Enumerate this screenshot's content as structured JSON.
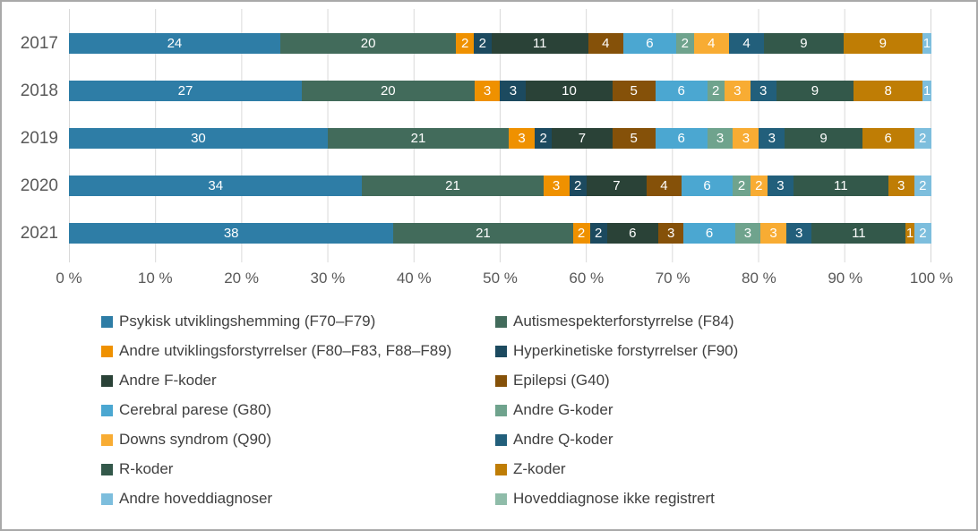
{
  "frame": {
    "background": "#FFFFFF",
    "border_color": "#A9A9A9",
    "grid_color": "#D9D9D9",
    "axis_text_color": "#595959",
    "legend_text_color": "#404040",
    "bar_label_color": "#FFFFFF"
  },
  "chart_data": {
    "type": "bar",
    "variant": "horizontal-stacked-100",
    "title": "",
    "xlabel": "",
    "ylabel": "",
    "x_range": [
      0,
      100
    ],
    "x_ticks": [
      "0 %",
      "10 %",
      "20 %",
      "30 %",
      "40 %",
      "50 %",
      "60 %",
      "70 %",
      "80 %",
      "90 %",
      "100 %"
    ],
    "grid": true,
    "legend_position": "bottom",
    "legend_columns": 2,
    "value_labels": "inside-segments-white",
    "categories": [
      "2017",
      "2018",
      "2019",
      "2020",
      "2021"
    ],
    "series": [
      {
        "name": "Psykisk utviklingshemming (F70–F79)",
        "color": "#2E7DA6",
        "values": [
          24,
          27,
          30,
          34,
          38
        ]
      },
      {
        "name": "Autismespekterforstyrrelse (F84)",
        "color": "#426B5B",
        "values": [
          20,
          20,
          21,
          21,
          21
        ]
      },
      {
        "name": "Andre utviklingsforstyrrelser (F80–F83, F88–F89)",
        "color": "#EF9100",
        "values": [
          2,
          3,
          3,
          3,
          2
        ]
      },
      {
        "name": "Hyperkinetiske forstyrrelser (F90)",
        "color": "#1C4A5F",
        "values": [
          2,
          3,
          2,
          2,
          2
        ]
      },
      {
        "name": "Andre F-koder",
        "color": "#2A4237",
        "values": [
          11,
          10,
          7,
          7,
          6
        ]
      },
      {
        "name": "Epilepsi (G40)",
        "color": "#855109",
        "values": [
          4,
          5,
          5,
          4,
          3
        ]
      },
      {
        "name": "Cerebral parese (G80)",
        "color": "#4BA7D1",
        "values": [
          6,
          6,
          6,
          6,
          6
        ]
      },
      {
        "name": "Andre G-koder",
        "color": "#6FA38D",
        "values": [
          2,
          2,
          3,
          2,
          3
        ]
      },
      {
        "name": "Downs syndrom (Q90)",
        "color": "#F8AC33",
        "values": [
          4,
          3,
          3,
          2,
          3
        ]
      },
      {
        "name": "Andre Q-koder",
        "color": "#225F7B",
        "values": [
          4,
          3,
          3,
          3,
          3
        ]
      },
      {
        "name": "R-koder",
        "color": "#33584A",
        "values": [
          9,
          9,
          9,
          11,
          11
        ]
      },
      {
        "name": "Z-koder",
        "color": "#BF7D05",
        "values": [
          9,
          8,
          6,
          3,
          1
        ]
      },
      {
        "name": "Andre hoveddiagnoser",
        "color": "#7DBEDD",
        "values": [
          1,
          1,
          2,
          2,
          2
        ]
      },
      {
        "name": "Hoveddiagnose ikke registrert",
        "color": "#8FBCA9",
        "values": [
          0,
          0,
          0,
          0,
          0
        ]
      }
    ]
  }
}
